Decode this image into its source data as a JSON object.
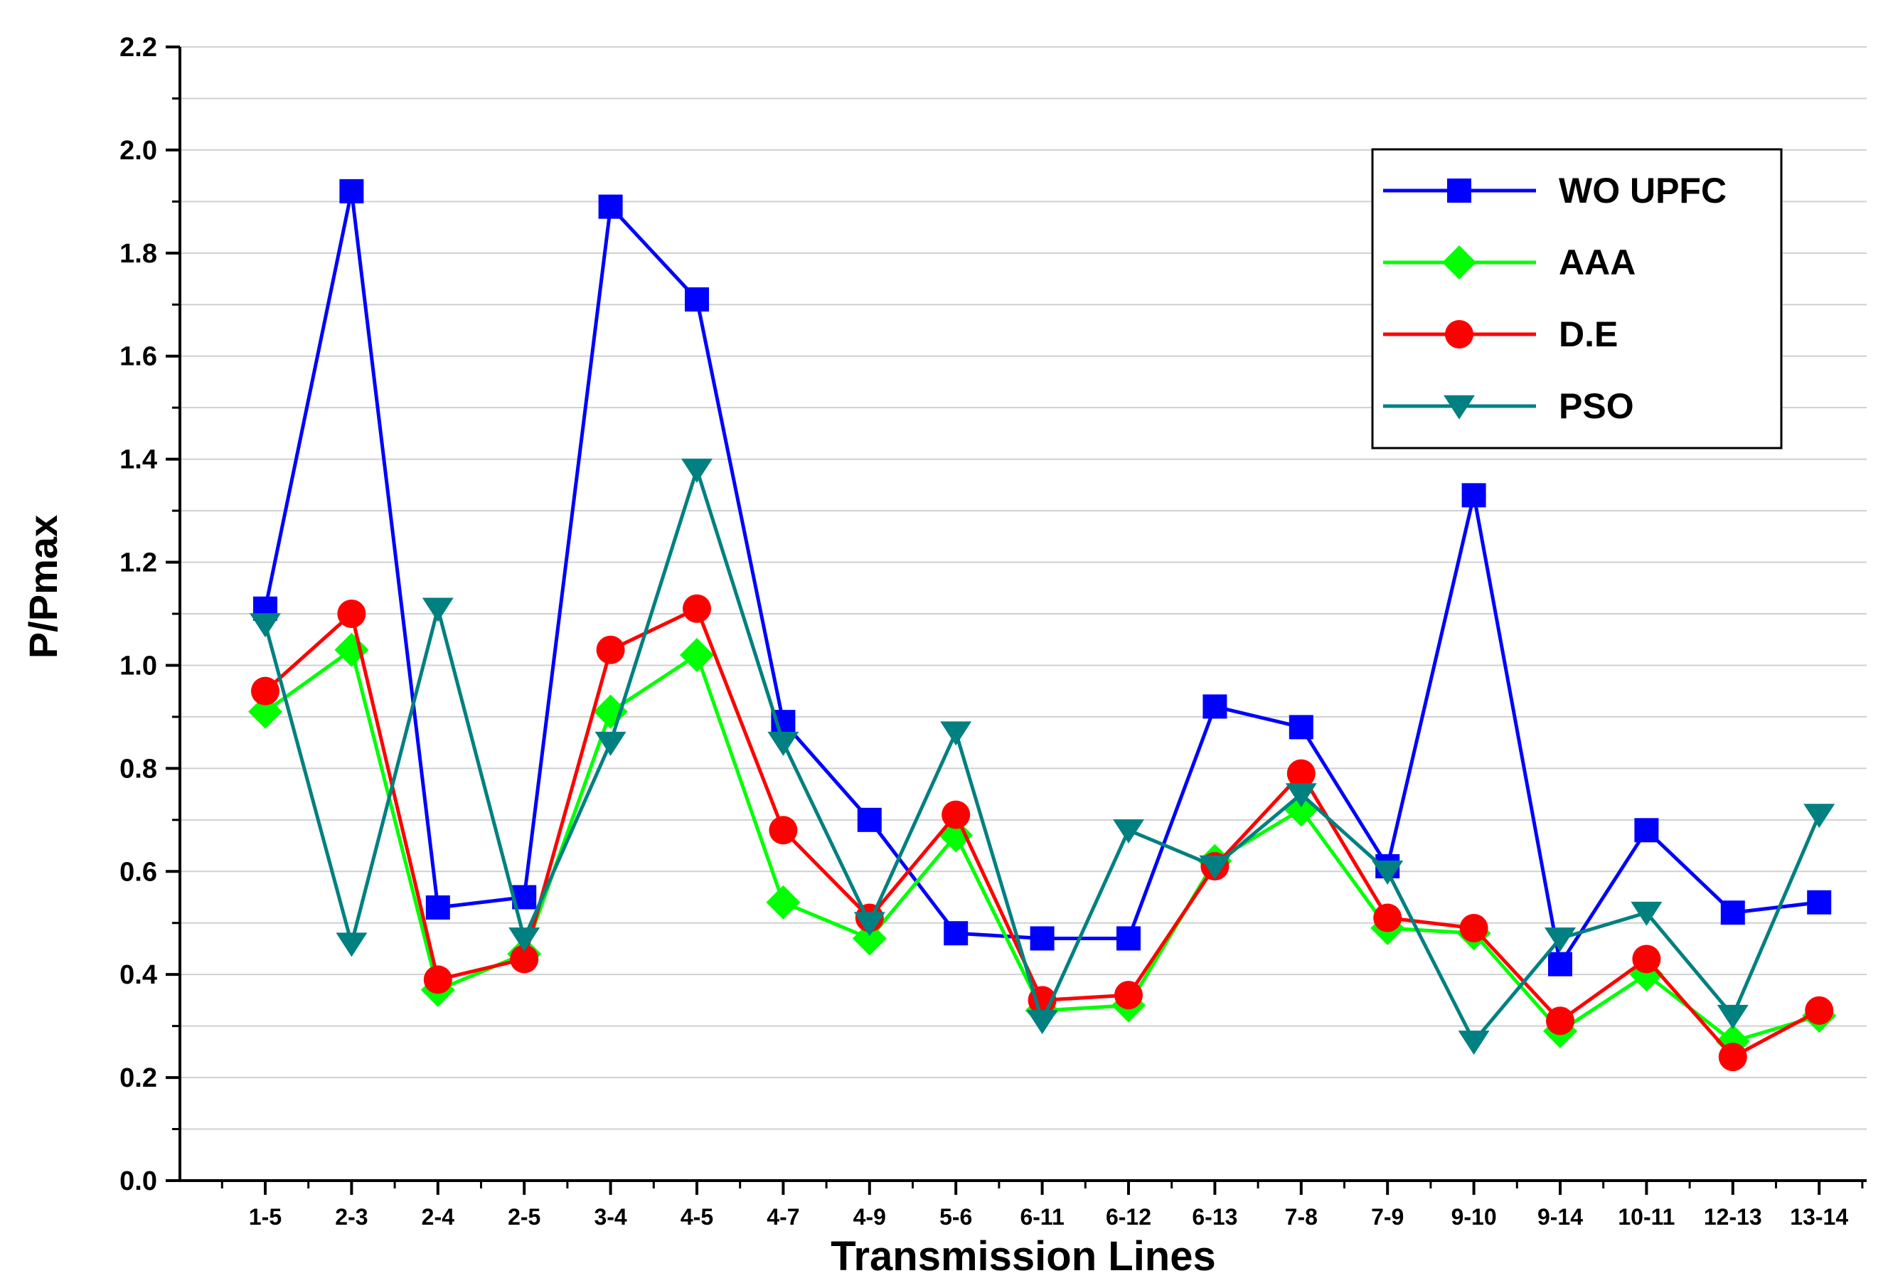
{
  "chart_data": {
    "type": "line",
    "title": "",
    "xlabel": "Transmission Lines",
    "ylabel": "P/Pmax",
    "ylim": [
      0,
      2.2
    ],
    "yticks": [
      "0.0",
      "0.2",
      "0.4",
      "0.6",
      "0.8",
      "1.0",
      "1.2",
      "1.4",
      "1.6",
      "1.8",
      "2.0",
      "2.2"
    ],
    "grid": true,
    "legend_position": "top-right",
    "categories": [
      "1-5",
      "2-3",
      "2-4",
      "2-5",
      "3-4",
      "4-5",
      "4-7",
      "4-9",
      "5-6",
      "6-11",
      "6-12",
      "6-13",
      "7-8",
      "7-9",
      "9-10",
      "9-14",
      "10-11",
      "12-13",
      "13-14"
    ],
    "series": [
      {
        "name": "WO UPFC",
        "color": "#0000ff",
        "marker": "square",
        "values": [
          1.11,
          1.92,
          0.53,
          0.55,
          1.89,
          1.71,
          0.89,
          0.7,
          0.48,
          0.47,
          0.47,
          0.92,
          0.88,
          0.61,
          1.33,
          0.42,
          0.68,
          0.52,
          0.54
        ]
      },
      {
        "name": "AAA",
        "color": "#00ff00",
        "marker": "diamond",
        "values": [
          0.91,
          1.03,
          0.37,
          0.44,
          0.91,
          1.02,
          0.54,
          0.47,
          0.67,
          0.33,
          0.34,
          0.62,
          0.72,
          0.49,
          0.48,
          0.29,
          0.4,
          0.27,
          0.32
        ]
      },
      {
        "name": "D.E",
        "color": "#ff0000",
        "marker": "circle",
        "values": [
          0.95,
          1.1,
          0.39,
          0.43,
          1.03,
          1.11,
          0.68,
          0.51,
          0.71,
          0.35,
          0.36,
          0.61,
          0.79,
          0.51,
          0.49,
          0.31,
          0.43,
          0.24,
          0.33
        ]
      },
      {
        "name": "PSO",
        "color": "#008080",
        "marker": "triangle-down",
        "values": [
          1.08,
          0.46,
          1.11,
          0.47,
          0.85,
          1.38,
          0.85,
          0.5,
          0.87,
          0.31,
          0.68,
          0.61,
          0.75,
          0.6,
          0.27,
          0.47,
          0.52,
          0.32,
          0.71
        ]
      }
    ]
  }
}
